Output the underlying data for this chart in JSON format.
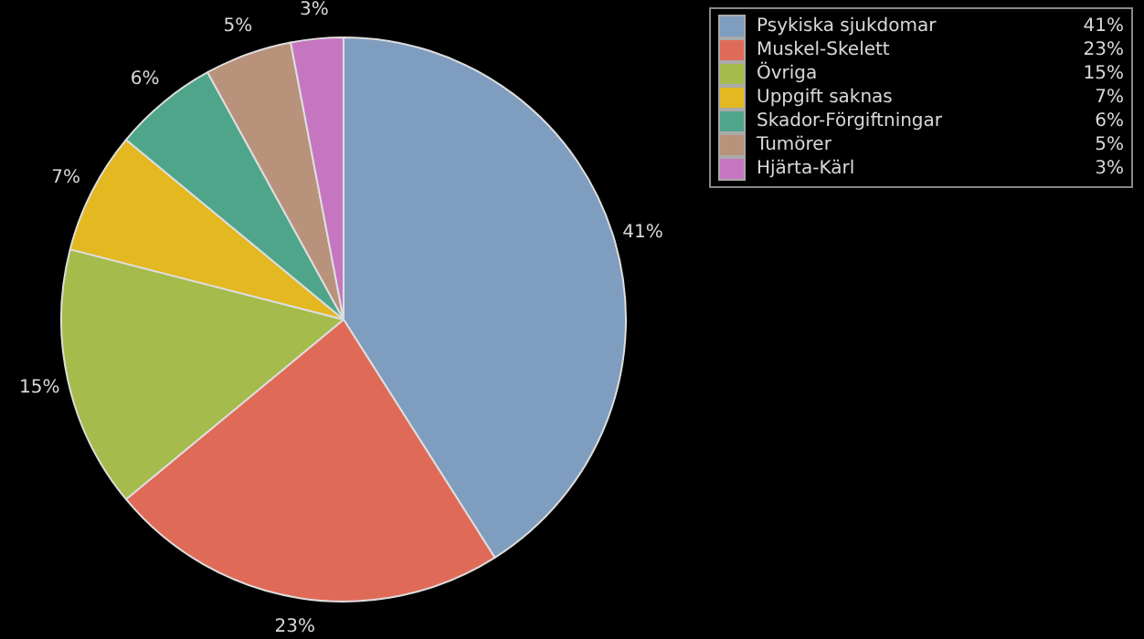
{
  "chart_data": {
    "type": "pie",
    "categories": [
      "Psykiska sjukdomar",
      "Muskel-Skelett",
      "Övriga",
      "Uppgift saknas",
      "Skador-Förgiftningar",
      "Tumörer",
      "Hjärta-Kärl"
    ],
    "values": [
      41,
      23,
      15,
      7,
      6,
      5,
      3
    ],
    "value_labels": [
      "41%",
      "23%",
      "15%",
      "7%",
      "6%",
      "5%",
      "3%"
    ],
    "colors": [
      "#7f9dbf",
      "#e06a58",
      "#a5bb4b",
      "#e3b820",
      "#4fa58a",
      "#b9927c",
      "#c676c0"
    ],
    "legend": "top right"
  }
}
